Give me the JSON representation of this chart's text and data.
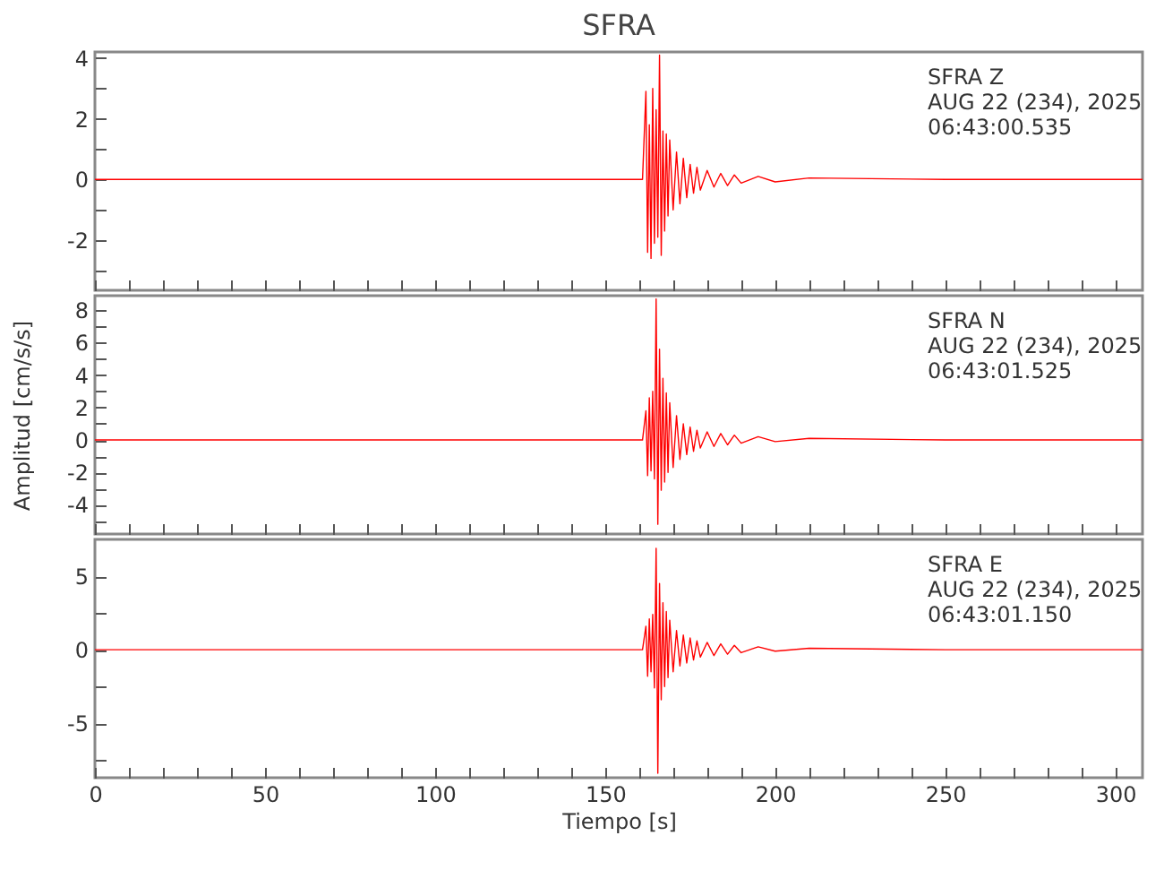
{
  "chart_data": [
    {
      "type": "line",
      "title": "SFRA",
      "tick_labels": "y",
      "annotations": [
        "SFRA   Z",
        "AUG 22 (234), 2025",
        "06:43:00.535"
      ],
      "xlim": [
        0,
        308
      ],
      "xticks": [
        0,
        {
          "value": 10,
          "label": null
        },
        {
          "value": 20,
          "label": null
        },
        {
          "value": 30,
          "label": null
        },
        {
          "value": 40,
          "label": null
        },
        50,
        {
          "value": 60,
          "label": null
        },
        {
          "value": 70,
          "label": null
        },
        {
          "value": 80,
          "label": null
        },
        {
          "value": 90,
          "label": null
        },
        100,
        {
          "value": 110,
          "label": null
        },
        {
          "value": 120,
          "label": null
        },
        {
          "value": 130,
          "label": null
        },
        {
          "value": 140,
          "label": null
        },
        150,
        {
          "value": 160,
          "label": null
        },
        {
          "value": 170,
          "label": null
        },
        {
          "value": 180,
          "label": null
        },
        {
          "value": 190,
          "label": null
        },
        200,
        {
          "value": 210,
          "label": null
        },
        {
          "value": 220,
          "label": null
        },
        {
          "value": 230,
          "label": null
        },
        {
          "value": 240,
          "label": null
        },
        250,
        {
          "value": 260,
          "label": null
        },
        {
          "value": 270,
          "label": null
        },
        {
          "value": 280,
          "label": null
        },
        {
          "value": 290,
          "label": null
        },
        300
      ],
      "ylim": [
        -3.65,
        4.2
      ],
      "yticks": [
        {
          "value": -3,
          "label": null
        },
        -2,
        {
          "value": -1,
          "label": null
        },
        0,
        {
          "value": 1,
          "label": null
        },
        2,
        {
          "value": 3,
          "label": null
        },
        4
      ],
      "x": [
        0,
        50,
        100,
        150,
        161,
        162,
        162.5,
        163,
        163.5,
        164,
        164.5,
        165,
        165.5,
        166,
        166.5,
        167,
        167.5,
        168,
        168.5,
        169,
        170,
        171,
        172,
        173,
        174,
        175,
        176,
        177,
        178,
        180,
        182,
        184,
        186,
        188,
        190,
        195,
        200,
        210,
        250,
        308
      ],
      "series": [
        {
          "color": "#ff0000",
          "values": [
            0,
            0,
            0,
            0,
            0,
            2.9,
            -2.4,
            1.8,
            -2.6,
            3.0,
            -2.1,
            2.3,
            -1.9,
            4.1,
            -2.5,
            1.6,
            -1.7,
            1.5,
            -1.2,
            1.3,
            -1.0,
            0.9,
            -0.8,
            0.7,
            -0.6,
            0.5,
            -0.45,
            0.4,
            -0.35,
            0.3,
            -0.25,
            0.2,
            -0.2,
            0.15,
            -0.12,
            0.1,
            -0.08,
            0.05,
            0,
            0
          ]
        }
      ]
    },
    {
      "type": "line",
      "ylabel": "Amplitud [cm/s/s]",
      "tick_labels": "y",
      "annotations": [
        "SFRA   N",
        "AUG 22 (234), 2025",
        "06:43:01.525"
      ],
      "xlim": [
        0,
        308
      ],
      "xticks": [
        0,
        {
          "value": 10,
          "label": null
        },
        {
          "value": 20,
          "label": null
        },
        {
          "value": 30,
          "label": null
        },
        {
          "value": 40,
          "label": null
        },
        50,
        {
          "value": 60,
          "label": null
        },
        {
          "value": 70,
          "label": null
        },
        {
          "value": 80,
          "label": null
        },
        {
          "value": 90,
          "label": null
        },
        100,
        {
          "value": 110,
          "label": null
        },
        {
          "value": 120,
          "label": null
        },
        {
          "value": 130,
          "label": null
        },
        {
          "value": 140,
          "label": null
        },
        150,
        {
          "value": 160,
          "label": null
        },
        {
          "value": 170,
          "label": null
        },
        {
          "value": 180,
          "label": null
        },
        {
          "value": 190,
          "label": null
        },
        200,
        {
          "value": 210,
          "label": null
        },
        {
          "value": 220,
          "label": null
        },
        {
          "value": 230,
          "label": null
        },
        {
          "value": 240,
          "label": null
        },
        250,
        {
          "value": 260,
          "label": null
        },
        {
          "value": 270,
          "label": null
        },
        {
          "value": 280,
          "label": null
        },
        {
          "value": 290,
          "label": null
        },
        300
      ],
      "ylim": [
        -5.8,
        8.9
      ],
      "yticks": [
        {
          "value": -5,
          "label": null
        },
        -4,
        {
          "value": -3,
          "label": null
        },
        -2,
        {
          "value": -1,
          "label": null
        },
        0,
        {
          "value": 1,
          "label": null
        },
        2,
        {
          "value": 3,
          "label": null
        },
        4,
        {
          "value": 5,
          "label": null
        },
        6,
        {
          "value": 7,
          "label": null
        },
        8
      ],
      "x": [
        0,
        50,
        100,
        150,
        161,
        162,
        162.5,
        163,
        163.5,
        164,
        164.5,
        165,
        165.5,
        166,
        166.5,
        167,
        167.5,
        168,
        168.5,
        169,
        170,
        171,
        172,
        173,
        174,
        175,
        176,
        177,
        178,
        180,
        182,
        184,
        186,
        188,
        190,
        195,
        200,
        210,
        250,
        308
      ],
      "series": [
        {
          "color": "#ff0000",
          "values": [
            0,
            0,
            0,
            0,
            0,
            1.8,
            -2.2,
            2.6,
            -1.9,
            3.0,
            -2.4,
            8.7,
            -5.2,
            5.6,
            -3.1,
            3.8,
            -2.6,
            2.9,
            -2.0,
            2.3,
            -1.7,
            1.5,
            -1.2,
            1.0,
            -0.9,
            0.8,
            -0.7,
            0.6,
            -0.5,
            0.5,
            -0.4,
            0.4,
            -0.3,
            0.3,
            -0.2,
            0.2,
            -0.1,
            0.1,
            0,
            0
          ]
        }
      ]
    },
    {
      "type": "line",
      "xlabel": "Tiempo [s]",
      "annotations": [
        "SFRA   E",
        "AUG 22 (234), 2025",
        "06:43:01.150"
      ],
      "xlim": [
        0,
        308
      ],
      "xticks": [
        0,
        {
          "value": 10,
          "label": null
        },
        {
          "value": 20,
          "label": null
        },
        {
          "value": 30,
          "label": null
        },
        {
          "value": 40,
          "label": null
        },
        50,
        {
          "value": 60,
          "label": null
        },
        {
          "value": 70,
          "label": null
        },
        {
          "value": 80,
          "label": null
        },
        {
          "value": 90,
          "label": null
        },
        100,
        {
          "value": 110,
          "label": null
        },
        {
          "value": 120,
          "label": null
        },
        {
          "value": 130,
          "label": null
        },
        {
          "value": 140,
          "label": null
        },
        150,
        {
          "value": 160,
          "label": null
        },
        {
          "value": 170,
          "label": null
        },
        {
          "value": 180,
          "label": null
        },
        {
          "value": 190,
          "label": null
        },
        200,
        {
          "value": 210,
          "label": null
        },
        {
          "value": 220,
          "label": null
        },
        {
          "value": 230,
          "label": null
        },
        {
          "value": 240,
          "label": null
        },
        250,
        {
          "value": 260,
          "label": null
        },
        {
          "value": 270,
          "label": null
        },
        {
          "value": 280,
          "label": null
        },
        {
          "value": 290,
          "label": null
        },
        300
      ],
      "ylim": [
        -8.7,
        7.5
      ],
      "yticks": [
        {
          "value": -7.5,
          "label": null
        },
        -5,
        {
          "value": -2.5,
          "label": null
        },
        0,
        {
          "value": 2.5,
          "label": null
        },
        5
      ],
      "x": [
        0,
        50,
        100,
        150,
        161,
        162,
        162.5,
        163,
        163.5,
        164,
        164.5,
        165,
        165.5,
        166,
        166.5,
        167,
        167.5,
        168,
        168.5,
        169,
        170,
        171,
        172,
        173,
        174,
        175,
        176,
        177,
        178,
        180,
        182,
        184,
        186,
        188,
        190,
        195,
        200,
        210,
        250,
        308
      ],
      "series": [
        {
          "color": "#ff0000",
          "values": [
            0,
            0,
            0,
            0,
            0,
            1.6,
            -1.8,
            2.1,
            -1.5,
            2.4,
            -2.6,
            6.9,
            -8.4,
            4.5,
            -3.4,
            3.2,
            -2.5,
            2.6,
            -1.9,
            2.0,
            -1.5,
            1.3,
            -1.1,
            1.0,
            -0.9,
            0.8,
            -0.7,
            0.6,
            -0.5,
            0.5,
            -0.4,
            0.4,
            -0.3,
            0.3,
            -0.2,
            0.2,
            -0.1,
            0.1,
            0,
            0
          ]
        }
      ]
    }
  ]
}
